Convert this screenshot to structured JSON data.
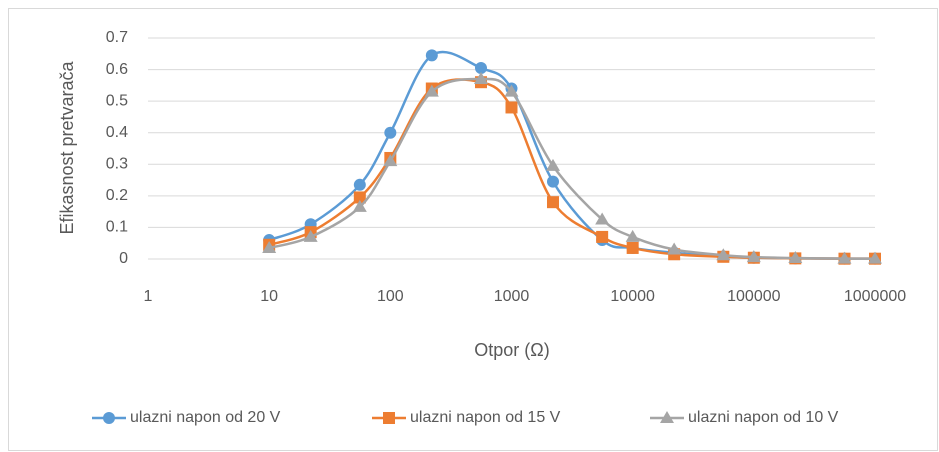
{
  "chart_data": {
    "type": "scatter",
    "xlabel": "Otpor (Ω)",
    "ylabel": "Efikasnost pretvarača",
    "xscale": "log",
    "x": [
      10,
      22,
      56,
      100,
      220,
      560,
      1000,
      2200,
      5600,
      10000,
      22000,
      56000,
      100000,
      220000,
      560000,
      1000000
    ],
    "series": [
      {
        "name": "ulazni napon od 20 V",
        "color": "#5b9bd5",
        "marker": "circle",
        "values": [
          0.06,
          0.11,
          0.235,
          0.4,
          0.645,
          0.605,
          0.54,
          0.245,
          0.06,
          0.035,
          0.02,
          0.008,
          0.004,
          0.002,
          0.001,
          0.001
        ]
      },
      {
        "name": "ulazni napon od 15 V",
        "color": "#ed7d31",
        "marker": "square",
        "values": [
          0.045,
          0.085,
          0.195,
          0.32,
          0.54,
          0.56,
          0.48,
          0.18,
          0.07,
          0.035,
          0.015,
          0.007,
          0.004,
          0.002,
          0.001,
          0.001
        ]
      },
      {
        "name": "ulazni napon od 10 V",
        "color": "#a5a5a5",
        "marker": "triangle",
        "values": [
          0.035,
          0.07,
          0.165,
          0.31,
          0.53,
          0.57,
          0.53,
          0.295,
          0.125,
          0.07,
          0.03,
          0.012,
          0.006,
          0.003,
          0.001,
          0.001
        ]
      }
    ],
    "xlim": [
      1,
      1000000
    ],
    "xticks": [
      1,
      10,
      100,
      1000,
      10000,
      100000,
      1000000
    ],
    "ylim": [
      0,
      0.7
    ],
    "yticks": [
      0,
      0.1,
      0.2,
      0.3,
      0.4,
      0.5,
      0.6,
      0.7
    ],
    "grid": true,
    "smooth": true,
    "legend": "bottom"
  }
}
